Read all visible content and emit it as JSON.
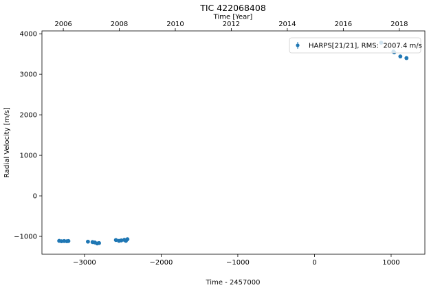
{
  "chart_data": {
    "type": "scatter",
    "title": "TIC 422068408",
    "xlabel": "Time - 2457000",
    "ylabel": "Radial Velocity [m/s]",
    "top_xlabel": "Time [Year]",
    "xlim": [
      -3555,
      1440
    ],
    "ylim": [
      -1440,
      4070
    ],
    "xticks": [
      -3000,
      -2000,
      -1000,
      0,
      1000
    ],
    "xtick_labels": [
      "−3000",
      "−2000",
      "−1000",
      "0",
      "1000"
    ],
    "yticks": [
      -1000,
      0,
      1000,
      2000,
      3000,
      4000
    ],
    "ytick_labels": [
      "−1000",
      "0",
      "1000",
      "2000",
      "3000",
      "4000"
    ],
    "top_xticks": [
      2006,
      2008,
      2010,
      2012,
      2014,
      2016,
      2018
    ],
    "top_xtick_labels": [
      "2006",
      "2008",
      "2010",
      "2012",
      "2014",
      "2016",
      "2018"
    ],
    "grid": false,
    "legend_position": "top-right",
    "series": [
      {
        "name": "HARPS[21/21], RMS:  2007.4 m/s",
        "color": "#1f77b4",
        "points": [
          {
            "x": -3330,
            "y": -1110
          },
          {
            "x": -3300,
            "y": -1120
          },
          {
            "x": -3265,
            "y": -1115
          },
          {
            "x": -3230,
            "y": -1120
          },
          {
            "x": -3210,
            "y": -1115
          },
          {
            "x": -2955,
            "y": -1130
          },
          {
            "x": -2895,
            "y": -1140
          },
          {
            "x": -2865,
            "y": -1150
          },
          {
            "x": -2835,
            "y": -1175
          },
          {
            "x": -2810,
            "y": -1165
          },
          {
            "x": -2590,
            "y": -1090
          },
          {
            "x": -2550,
            "y": -1110
          },
          {
            "x": -2520,
            "y": -1100
          },
          {
            "x": -2480,
            "y": -1085
          },
          {
            "x": -2460,
            "y": -1110
          },
          {
            "x": -2440,
            "y": -1070
          },
          {
            "x": 870,
            "y": 3780
          },
          {
            "x": 1030,
            "y": 3560
          },
          {
            "x": 1040,
            "y": 3540
          },
          {
            "x": 1120,
            "y": 3440
          },
          {
            "x": 1200,
            "y": 3400
          }
        ]
      }
    ]
  }
}
